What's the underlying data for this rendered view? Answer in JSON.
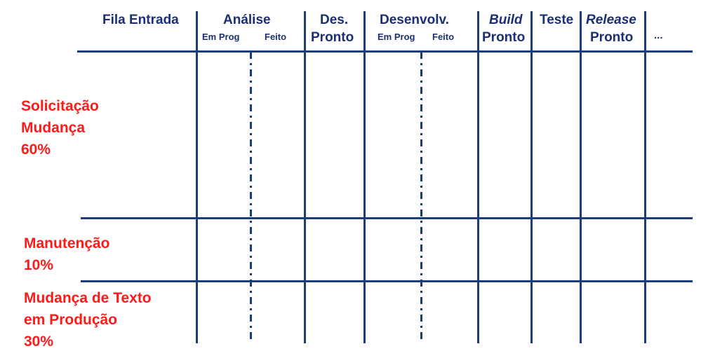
{
  "header": {
    "fila_entrada": "Fila Entrada",
    "analise": "Análise",
    "analise_em_prog": "Em Prog",
    "analise_feito": "Feito",
    "des_pronto_line1": "Des.",
    "des_pronto_line2": "Pronto",
    "desenvolv": "Desenvolv.",
    "desenvolv_em_prog": "Em Prog",
    "desenvolv_feito": "Feito",
    "build_line1": "Build",
    "build_line2": "Pronto",
    "teste": "Teste",
    "release_line1": "Release",
    "release_line2": "Pronto",
    "more": "..."
  },
  "lanes": [
    {
      "lines": [
        "Solicitação",
        "Mudança",
        "60%"
      ]
    },
    {
      "lines": [
        "Manutenção",
        "10%"
      ]
    },
    {
      "lines": [
        "Mudança de Texto",
        "em Produção",
        "30%"
      ]
    }
  ],
  "colors": {
    "header_text": "#1b2f72",
    "lines": "#1b3d7a",
    "lane_text": "#ff1a1a"
  }
}
